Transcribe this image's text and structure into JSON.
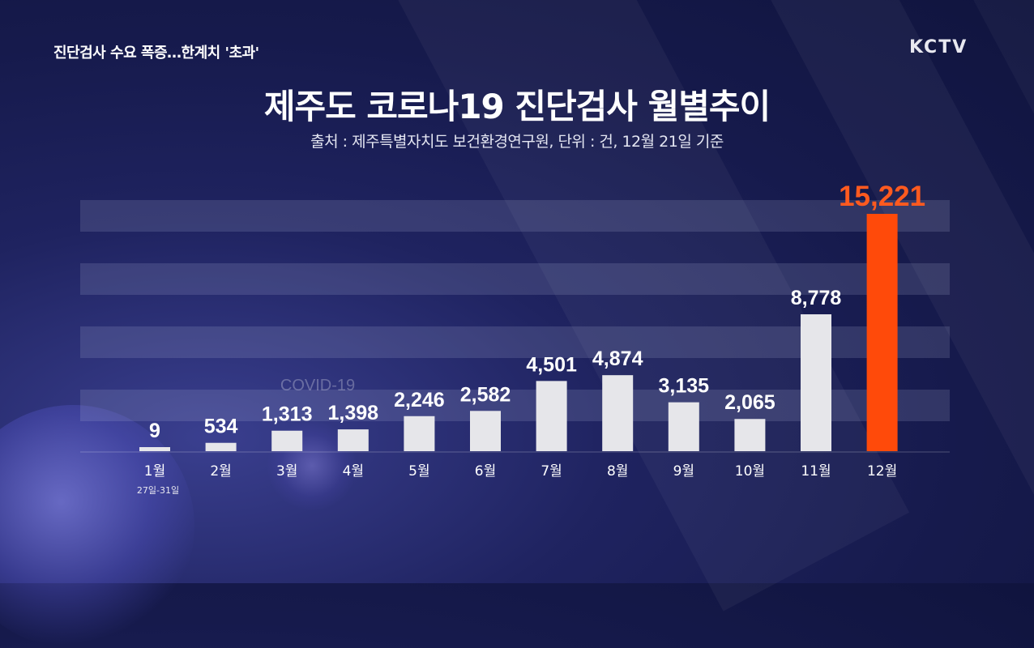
{
  "headline": "진단검사 수요 폭증…한계치 '초과'",
  "logo": "KCTV",
  "watermark": "COVID-19",
  "chart_data": {
    "type": "bar",
    "title": "제주도 코로나19 진단검사 월별추이",
    "subtitle": "출처 : 제주특별자치도 보건환경연구원, 단위 : 건, 12월 21일 기준",
    "categories": [
      "1월",
      "2월",
      "3월",
      "4월",
      "5월",
      "6월",
      "7월",
      "8월",
      "9월",
      "10월",
      "11월",
      "12월"
    ],
    "category_notes": [
      "27일-31일",
      "",
      "",
      "",
      "",
      "",
      "",
      "",
      "",
      "",
      "",
      ""
    ],
    "values": [
      9,
      534,
      1313,
      1398,
      2246,
      2582,
      4501,
      4874,
      3135,
      2065,
      8778,
      15221
    ],
    "value_labels": [
      "9",
      "534",
      "1,313",
      "1,398",
      "2,246",
      "2,582",
      "4,501",
      "4,874",
      "3,135",
      "2,065",
      "8,778",
      "15,221"
    ],
    "ylim": [
      0,
      15221
    ],
    "grid": false,
    "colors": {
      "bar": "#e6e6ea",
      "highlight": "#ff4a0a",
      "highlight_text": "#ff5a1f"
    },
    "highlight_index": 11
  }
}
